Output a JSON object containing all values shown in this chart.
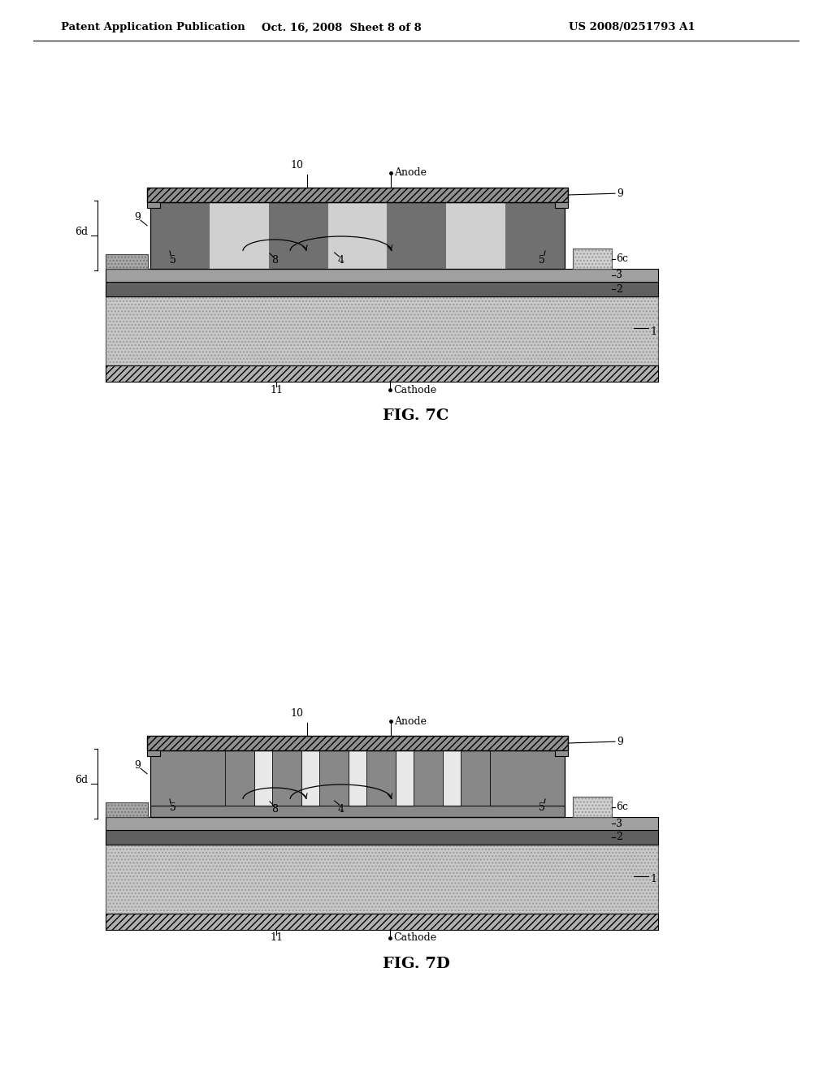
{
  "bg_color": "#ffffff",
  "header_left": "Patent Application Publication",
  "header_mid": "Oct. 16, 2008  Sheet 8 of 8",
  "header_right": "US 2008/0251793 A1",
  "fig7c_label": "FIG. 7C",
  "fig7d_label": "FIG. 7D",
  "gray_light": "#c8c8c8",
  "gray_medium": "#888888",
  "gray_dark": "#555555",
  "gray_epi": "#a0a0a0",
  "white": "#ffffff",
  "dark_layer": "#606060"
}
